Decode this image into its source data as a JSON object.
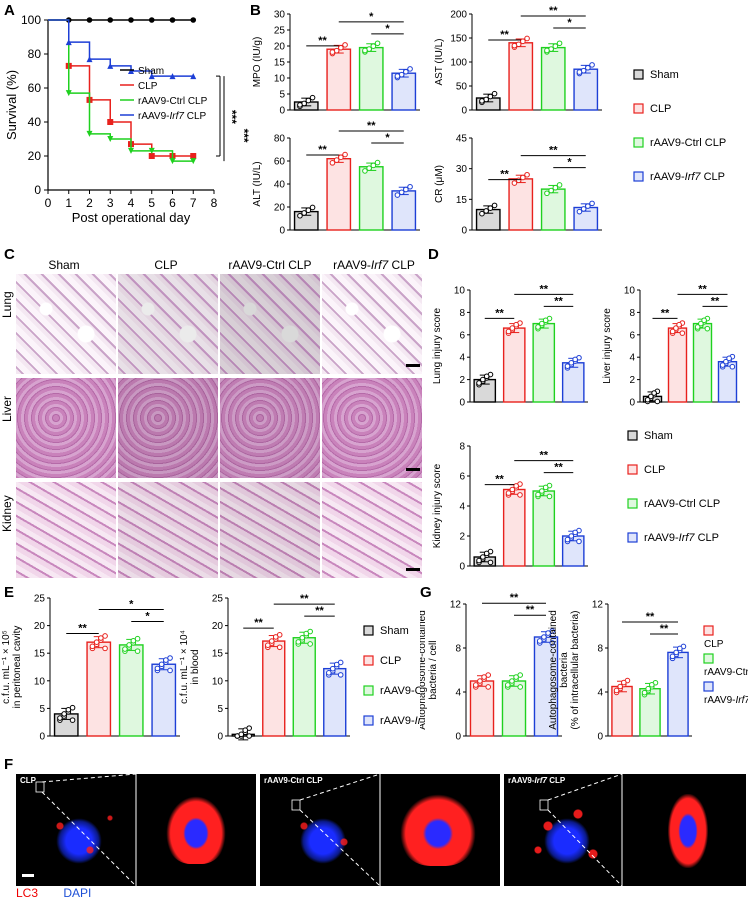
{
  "panels": {
    "A": "A",
    "B": "B",
    "C": "C",
    "D": "D",
    "E": "E",
    "F": "F",
    "G": "G"
  },
  "colors": {
    "sham": "#000000",
    "clp": "#e8211d",
    "ctrl": "#1fd11f",
    "irf7": "#1d3fd6",
    "sham_bar": "#d9d9d9",
    "clp_bar": "#fde3e3",
    "ctrl_bar": "#dff8df",
    "irf7_bar": "#dfe5fb"
  },
  "legend": {
    "sham": "Sham",
    "clp": "CLP",
    "ctrl": "rAAV9-Ctrl CLP",
    "irf7_pre": "rAAV9-",
    "irf7_gene": "Irf7",
    "irf7_post": " CLP"
  },
  "panelA": {
    "chart_data": {
      "type": "line",
      "xlabel": "Post operational day",
      "ylabel": "Survival (%)",
      "xlim": [
        0,
        8
      ],
      "ylim": [
        0,
        100
      ],
      "x": [
        0,
        1,
        2,
        3,
        4,
        5,
        6,
        7
      ],
      "series": [
        {
          "name": "Sham",
          "values": [
            100,
            100,
            100,
            100,
            100,
            100,
            100,
            100
          ]
        },
        {
          "name": "CLP",
          "values": [
            100,
            73,
            53,
            40,
            27,
            20,
            20,
            20
          ]
        },
        {
          "name": "rAAV9-Ctrl CLP",
          "values": [
            100,
            57,
            33,
            30,
            23,
            23,
            17,
            17
          ]
        },
        {
          "name": "rAAV9-Irf7 CLP",
          "values": [
            100,
            87,
            77,
            73,
            70,
            67,
            67,
            67
          ]
        }
      ],
      "significance": [
        "***",
        "***"
      ]
    }
  },
  "panelB": {
    "chart_data": [
      {
        "type": "bar",
        "ylabel": "MPO (IU/g)",
        "ylim": [
          0,
          30
        ],
        "yticks": [
          0,
          5,
          10,
          15,
          20,
          25,
          30
        ],
        "values": [
          2.5,
          19,
          19.5,
          11.5
        ],
        "sig": [
          "**",
          "*",
          "*"
        ]
      },
      {
        "type": "bar",
        "ylabel": "AST (IU/L)",
        "ylim": [
          0,
          200
        ],
        "yticks": [
          0,
          50,
          100,
          150,
          200
        ],
        "values": [
          25,
          140,
          130,
          85
        ],
        "sig": [
          "**",
          "**",
          "*"
        ]
      },
      {
        "type": "bar",
        "ylabel": "ALT (IU/L)",
        "ylim": [
          0,
          80
        ],
        "yticks": [
          0,
          20,
          40,
          60,
          80
        ],
        "values": [
          16,
          62,
          55,
          34
        ],
        "sig": [
          "**",
          "**",
          "*"
        ]
      },
      {
        "type": "bar",
        "ylabel": "CR (μM)",
        "ylim": [
          0,
          45
        ],
        "yticks": [
          0,
          15,
          30,
          45
        ],
        "values": [
          10,
          25,
          20,
          11
        ],
        "sig": [
          "**",
          "**",
          "*"
        ]
      }
    ]
  },
  "panelC": {
    "cols": [
      "Sham",
      "CLP",
      "rAAV9-Ctrl CLP",
      "rAAV9-Irf7 CLP"
    ],
    "col4_pre": "rAAV9-",
    "col4_gene": "Irf7",
    "col4_post": " CLP",
    "rows": [
      "Lung",
      "Liver",
      "Kidney"
    ]
  },
  "panelD": {
    "chart_data": [
      {
        "type": "bar",
        "ylabel": "Lung injury score",
        "ylim": [
          0,
          10
        ],
        "yticks": [
          0,
          2,
          4,
          6,
          8,
          10
        ],
        "values": [
          2,
          6.6,
          7,
          3.5
        ],
        "sig": [
          "**",
          "**",
          "**"
        ]
      },
      {
        "type": "bar",
        "ylabel": "Liver injury score",
        "ylim": [
          0,
          10
        ],
        "yticks": [
          0,
          2,
          4,
          6,
          8,
          10
        ],
        "values": [
          0.5,
          6.6,
          7,
          3.6
        ],
        "sig": [
          "**",
          "**",
          "**"
        ]
      },
      {
        "type": "bar",
        "ylabel": "Kidney injury score",
        "ylim": [
          0,
          8
        ],
        "yticks": [
          0,
          2,
          4,
          6,
          8
        ],
        "values": [
          0.6,
          5.1,
          5,
          2
        ],
        "sig": [
          "**",
          "**",
          "**"
        ]
      }
    ]
  },
  "panelE": {
    "chart_data": [
      {
        "type": "bar",
        "ylabel1": "c.f.u. mL⁻¹ × 10⁵",
        "ylabel2": "in peritoneal cavity",
        "ylim": [
          0,
          25
        ],
        "yticks": [
          0,
          5,
          10,
          15,
          20,
          25
        ],
        "values": [
          4,
          17,
          16.5,
          13
        ],
        "sig": [
          "**",
          "*",
          "*"
        ]
      },
      {
        "type": "bar",
        "ylabel1": "c.f.u. mL⁻¹ × 10⁴",
        "ylabel2": "in blood",
        "ylim": [
          0,
          25
        ],
        "yticks": [
          0,
          5,
          10,
          15,
          20,
          25
        ],
        "values": [
          0.3,
          17.2,
          17.8,
          12.2
        ],
        "sig": [
          "**",
          "**",
          "**"
        ]
      }
    ]
  },
  "panelG": {
    "chart_data": [
      {
        "type": "bar",
        "ylabel1": "Autophagosome-contained",
        "ylabel2": "bacteria / cell",
        "ylim": [
          0,
          12
        ],
        "yticks": [
          0,
          4,
          8,
          12
        ],
        "values": [
          5,
          5,
          9
        ],
        "sig": [
          "**",
          "**"
        ]
      },
      {
        "type": "bar",
        "ylabel1": "Autophagosome-contained",
        "ylabel2": "bacteria",
        "ylabel3": "(% of intracellular bacteria)",
        "ylim": [
          0,
          12
        ],
        "yticks": [
          0,
          4,
          8,
          12
        ],
        "values": [
          4.5,
          4.3,
          7.6
        ],
        "sig": [
          "**",
          "**"
        ]
      }
    ]
  },
  "panelF": {
    "labels": [
      "CLP",
      "rAAV9-Ctrl CLP",
      "rAAV9-Irf7 CLP"
    ],
    "lab3_pre": "rAAV9-",
    "lab3_gene": "Irf7",
    "lab3_post": " CLP",
    "lc3": "LC3",
    "dapi": "DAPI"
  }
}
